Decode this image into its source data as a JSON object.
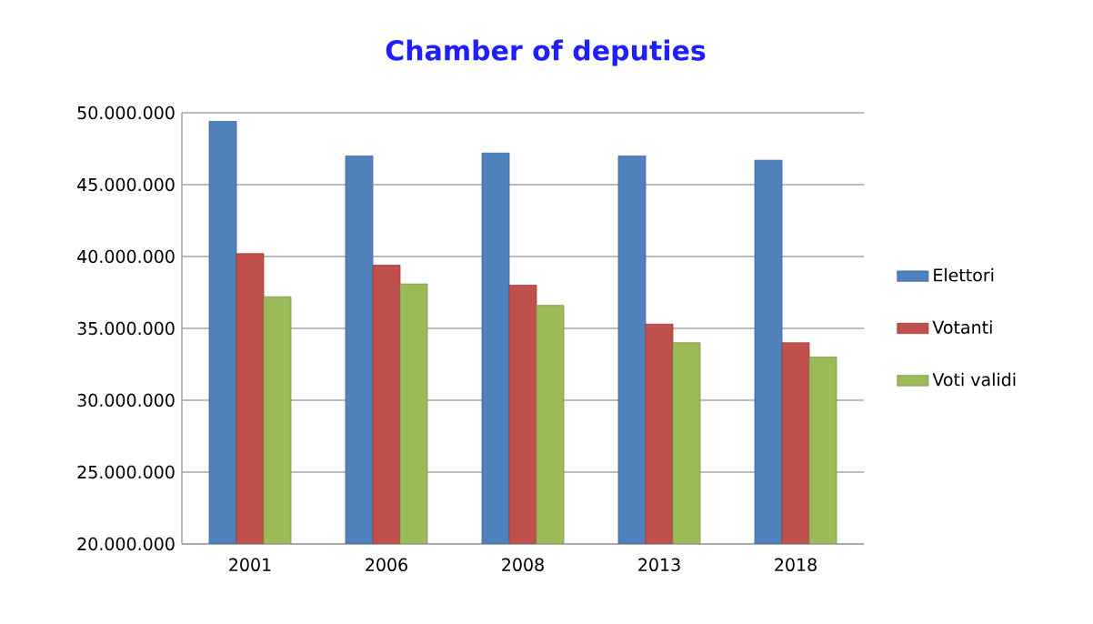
{
  "chart_data": {
    "type": "bar",
    "title": "Chamber of deputies",
    "categories": [
      "2001",
      "2006",
      "2008",
      "2013",
      "2018"
    ],
    "series": [
      {
        "name": "Elettori",
        "color": "#4f81bd",
        "values": [
          49400000,
          47000000,
          47200000,
          47000000,
          46700000
        ]
      },
      {
        "name": "Votanti",
        "color": "#c0504d",
        "values": [
          40200000,
          39400000,
          38000000,
          35300000,
          34000000
        ]
      },
      {
        "name": "Voti validi",
        "color": "#9bbb59",
        "values": [
          37200000,
          38100000,
          36600000,
          34000000,
          33000000
        ]
      }
    ],
    "ylim": [
      20000000,
      50000000
    ],
    "yticks": [
      {
        "value": 20000000,
        "label": "20.000.000"
      },
      {
        "value": 25000000,
        "label": "25.000.000"
      },
      {
        "value": 30000000,
        "label": "30.000.000"
      },
      {
        "value": 35000000,
        "label": "35.000.000"
      },
      {
        "value": 40000000,
        "label": "40.000.000"
      },
      {
        "value": 45000000,
        "label": "45.000.000"
      },
      {
        "value": 50000000,
        "label": "50.000.000"
      }
    ],
    "grid": "y",
    "legend": "right"
  }
}
